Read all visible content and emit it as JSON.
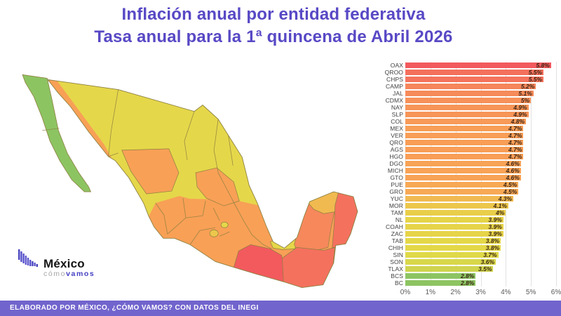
{
  "title": {
    "line1": "Inflación anual por entidad federativa",
    "line2": "Tasa anual para la 1ª quincena de Abril 2026"
  },
  "footer": {
    "text": "ELABORADO POR MÉXICO, ¿CÓMO VAMOS? CON DATOS DEL INEGI"
  },
  "logo": {
    "brand": "México",
    "tagline_1": "cómo",
    "tagline_2": "vamos"
  },
  "chart_data": {
    "type": "bar",
    "orientation": "horizontal",
    "title": "Inflación anual por entidad federativa",
    "subtitle": "Tasa anual para la 1ª quincena de Abril 2026",
    "unit": "%",
    "xlim": [
      0,
      6
    ],
    "x_ticks": [
      "0%",
      "1%",
      "2%",
      "3%",
      "4%",
      "5%",
      "6%"
    ],
    "grid": true,
    "states": [
      {
        "abbr": "OAX",
        "value": 5.8,
        "label": "5.8%",
        "color": "#f2595e"
      },
      {
        "abbr": "QROO",
        "value": 5.5,
        "label": "5.5%",
        "color": "#f4705d"
      },
      {
        "abbr": "CHPS",
        "value": 5.5,
        "label": "5.5%",
        "color": "#f4745d"
      },
      {
        "abbr": "CAMP",
        "value": 5.2,
        "label": "5.2%",
        "color": "#f6865b"
      },
      {
        "abbr": "JAL",
        "value": 5.1,
        "label": "5.1%",
        "color": "#f68b5a"
      },
      {
        "abbr": "CDMX",
        "value": 5.0,
        "label": "5%",
        "color": "#f7915a"
      },
      {
        "abbr": "NAY",
        "value": 4.9,
        "label": "4.9%",
        "color": "#f79559"
      },
      {
        "abbr": "SLP",
        "value": 4.9,
        "label": "4.9%",
        "color": "#f79559"
      },
      {
        "abbr": "COL",
        "value": 4.8,
        "label": "4.8%",
        "color": "#f89a58"
      },
      {
        "abbr": "MEX",
        "value": 4.7,
        "label": "4.7%",
        "color": "#f89e57"
      },
      {
        "abbr": "VER",
        "value": 4.7,
        "label": "4.7%",
        "color": "#f89e57"
      },
      {
        "abbr": "QRO",
        "value": 4.7,
        "label": "4.7%",
        "color": "#f89e57"
      },
      {
        "abbr": "AGS",
        "value": 4.7,
        "label": "4.7%",
        "color": "#f89e57"
      },
      {
        "abbr": "HGO",
        "value": 4.7,
        "label": "4.7%",
        "color": "#f89e57"
      },
      {
        "abbr": "DGO",
        "value": 4.6,
        "label": "4.6%",
        "color": "#f8a356"
      },
      {
        "abbr": "MICH",
        "value": 4.6,
        "label": "4.6%",
        "color": "#f8a356"
      },
      {
        "abbr": "GTO",
        "value": 4.6,
        "label": "4.6%",
        "color": "#f8a356"
      },
      {
        "abbr": "PUE",
        "value": 4.5,
        "label": "4.5%",
        "color": "#f7a955"
      },
      {
        "abbr": "GRO",
        "value": 4.5,
        "label": "4.5%",
        "color": "#f7a955"
      },
      {
        "abbr": "YUC",
        "value": 4.3,
        "label": "4.3%",
        "color": "#f1ba50"
      },
      {
        "abbr": "MOR",
        "value": 4.1,
        "label": "4.1%",
        "color": "#ecc74c"
      },
      {
        "abbr": "TAM",
        "value": 4.0,
        "label": "4%",
        "color": "#e9ce4a"
      },
      {
        "abbr": "NL",
        "value": 3.9,
        "label": "3.9%",
        "color": "#e6d449"
      },
      {
        "abbr": "COAH",
        "value": 3.9,
        "label": "3.9%",
        "color": "#e6d449"
      },
      {
        "abbr": "ZAC",
        "value": 3.9,
        "label": "3.9%",
        "color": "#e6d449"
      },
      {
        "abbr": "TAB",
        "value": 3.8,
        "label": "3.8%",
        "color": "#e4d848"
      },
      {
        "abbr": "CHIH",
        "value": 3.8,
        "label": "3.8%",
        "color": "#e4d848"
      },
      {
        "abbr": "SIN",
        "value": 3.7,
        "label": "3.7%",
        "color": "#dfd948"
      },
      {
        "abbr": "SON",
        "value": 3.6,
        "label": "3.6%",
        "color": "#d8d74a"
      },
      {
        "abbr": "TLAX",
        "value": 3.5,
        "label": "3.5%",
        "color": "#cfd44d"
      },
      {
        "abbr": "BCS",
        "value": 2.8,
        "label": "2.8%",
        "color": "#8dc462"
      },
      {
        "abbr": "BC",
        "value": 2.8,
        "label": "2.8%",
        "color": "#8dc462"
      }
    ]
  },
  "map": {
    "description": "Choropleth of Mexico colored by annual inflation rate",
    "palette": {
      "green": "#8dc462",
      "yellow": "#e5d74a",
      "olive": "#ecc74c",
      "amber": "#f1ba50",
      "orange": "#f8a056",
      "deep_orange": "#f6885c",
      "salmon": "#f4715e",
      "red": "#f25a5e"
    }
  }
}
